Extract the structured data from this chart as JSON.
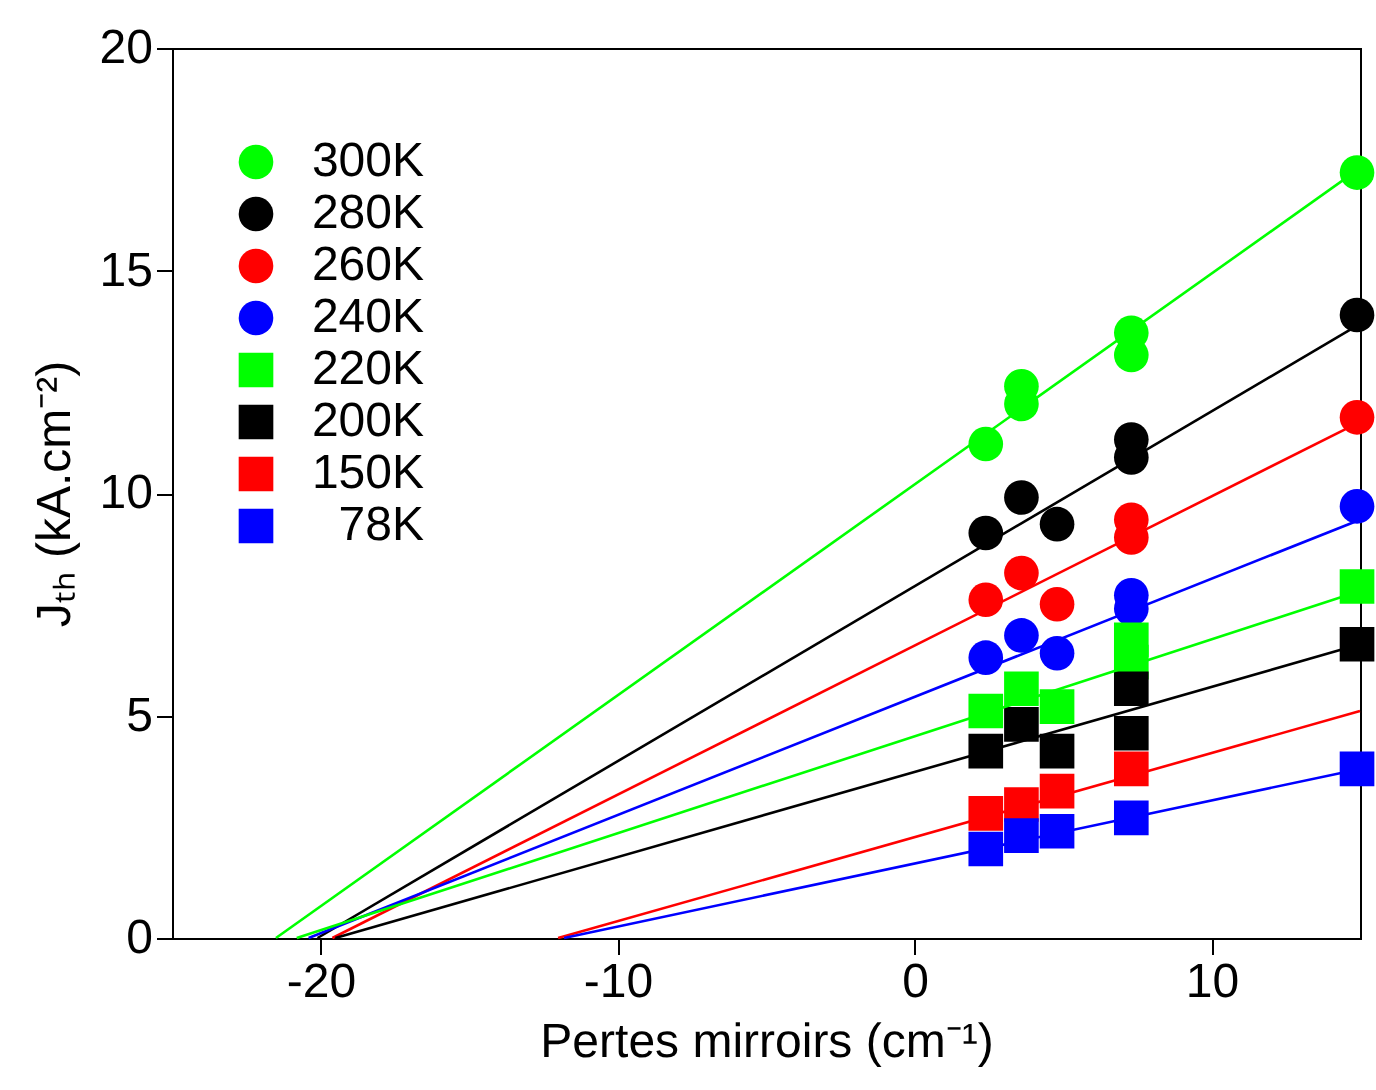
{
  "chart_data": {
    "type": "scatter",
    "xlabel": "Pertes mirroirs (cm⁻¹)",
    "ylabel": "Jₜₕ (kA.cm⁻²)",
    "xlim": [
      -25,
      15
    ],
    "ylim": [
      0,
      20
    ],
    "xticks": [
      -20,
      -10,
      0,
      10
    ],
    "yticks": [
      0,
      5,
      10,
      15,
      20
    ],
    "grid": false,
    "legend": "top left",
    "series": [
      {
        "name": "300K",
        "type": "scatter",
        "marker": "circle",
        "color": "#00ff00",
        "x": [
          2.4,
          3.6,
          3.6,
          7.3,
          7.3,
          14.9
        ],
        "values": [
          11.1,
          12.4,
          12.0,
          13.6,
          13.1,
          17.2
        ]
      },
      {
        "name": "280K",
        "type": "scatter",
        "marker": "circle",
        "color": "#000000",
        "x": [
          2.4,
          3.6,
          4.8,
          7.3,
          7.3,
          14.9
        ],
        "values": [
          9.1,
          9.9,
          9.3,
          11.2,
          10.8,
          14.0
        ]
      },
      {
        "name": "260K",
        "type": "scatter",
        "marker": "circle",
        "color": "#ff0000",
        "x": [
          2.4,
          3.6,
          4.8,
          7.3,
          7.3,
          14.9
        ],
        "values": [
          7.6,
          8.2,
          7.5,
          9.4,
          9.0,
          11.7
        ]
      },
      {
        "name": "240K",
        "type": "scatter",
        "marker": "circle",
        "color": "#0000ff",
        "x": [
          2.4,
          3.6,
          4.8,
          7.3,
          7.3,
          14.9
        ],
        "values": [
          6.3,
          6.8,
          6.4,
          7.7,
          7.4,
          9.7
        ]
      },
      {
        "name": "220K",
        "type": "scatter",
        "marker": "square",
        "color": "#00ff00",
        "x": [
          2.4,
          3.6,
          4.8,
          7.3,
          7.3,
          14.9
        ],
        "values": [
          5.1,
          5.6,
          5.2,
          6.7,
          6.2,
          7.9
        ]
      },
      {
        "name": "200K",
        "type": "scatter",
        "marker": "square",
        "color": "#000000",
        "x": [
          2.4,
          3.6,
          4.8,
          7.3,
          7.3,
          14.9
        ],
        "values": [
          4.2,
          4.8,
          4.2,
          5.6,
          4.6,
          6.6
        ]
      },
      {
        "name": "150K",
        "type": "scatter",
        "marker": "square",
        "color": "#ff0000",
        "x": [
          2.4,
          3.6,
          4.8,
          7.3
        ],
        "values": [
          2.8,
          3.0,
          3.3,
          3.8
        ]
      },
      {
        "name": "78K",
        "type": "scatter",
        "marker": "square",
        "color": "#0000ff",
        "x": [
          2.4,
          3.6,
          4.8,
          7.3,
          14.9
        ],
        "values": [
          2.0,
          2.3,
          2.4,
          2.7,
          3.8
        ]
      },
      {
        "type": "line",
        "color": "#00ff00",
        "x": [
          -21.5,
          15
        ],
        "values": [
          0,
          17.3
        ]
      },
      {
        "type": "line",
        "color": "#000000",
        "x": [
          -20.1,
          15
        ],
        "values": [
          0,
          13.8
        ]
      },
      {
        "type": "line",
        "color": "#ff0000",
        "x": [
          -19.6,
          15
        ],
        "values": [
          0,
          11.6
        ]
      },
      {
        "type": "line",
        "color": "#0000ff",
        "x": [
          -20.4,
          15
        ],
        "values": [
          0,
          9.4
        ]
      },
      {
        "type": "line",
        "color": "#00ff00",
        "x": [
          -20.8,
          15
        ],
        "values": [
          0,
          7.8
        ]
      },
      {
        "type": "line",
        "color": "#000000",
        "x": [
          -19.5,
          15
        ],
        "values": [
          0,
          6.6
        ]
      },
      {
        "type": "line",
        "color": "#ff0000",
        "x": [
          -12.0,
          15
        ],
        "values": [
          0,
          5.1
        ]
      },
      {
        "type": "line",
        "color": "#0000ff",
        "x": [
          -11.8,
          15
        ],
        "values": [
          0,
          3.8
        ]
      }
    ]
  }
}
